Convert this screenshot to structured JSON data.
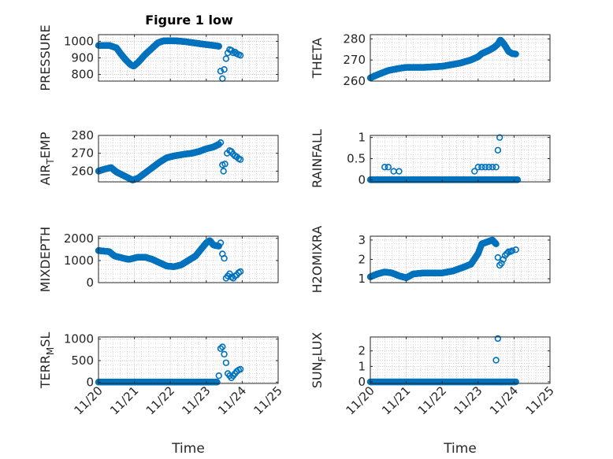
{
  "figure_title": "Figure 1 low",
  "chart_data": [
    {
      "type": "scatter",
      "ylabel": "PRESSURE",
      "xlabel": "",
      "xlim": [
        0,
        5
      ],
      "ylim": [
        760,
        1040
      ],
      "yticks": [
        800,
        900,
        1000
      ],
      "yticklabels": [
        "800",
        "900",
        "1000"
      ],
      "xticks": [
        0,
        1,
        2,
        3,
        4,
        5
      ],
      "xticklabels": [
        "11/20",
        "11/21",
        "11/22",
        "11/23",
        "11/24",
        "11/25"
      ],
      "show_xticklabels": false,
      "color": "#0072BD",
      "grid": true,
      "curve": [
        [
          0,
          975
        ],
        [
          0.3,
          975
        ],
        [
          0.5,
          960
        ],
        [
          0.6,
          930
        ],
        [
          0.75,
          890
        ],
        [
          0.9,
          858
        ],
        [
          0.98,
          850
        ],
        [
          1.1,
          872
        ],
        [
          1.3,
          920
        ],
        [
          1.5,
          960
        ],
        [
          1.65,
          990
        ],
        [
          1.8,
          1002
        ],
        [
          2.0,
          1003
        ],
        [
          2.2,
          1002
        ],
        [
          2.4,
          998
        ],
        [
          2.6,
          992
        ],
        [
          2.8,
          986
        ],
        [
          3.0,
          980
        ],
        [
          3.2,
          975
        ],
        [
          3.35,
          970
        ]
      ],
      "points": [
        [
          3.4,
          820
        ],
        [
          3.45,
          775
        ],
        [
          3.5,
          830
        ],
        [
          3.55,
          895
        ],
        [
          3.6,
          930
        ],
        [
          3.65,
          950
        ],
        [
          3.7,
          945
        ],
        [
          3.75,
          930
        ],
        [
          3.8,
          935
        ],
        [
          3.85,
          925
        ],
        [
          3.9,
          920
        ],
        [
          3.95,
          915
        ]
      ]
    },
    {
      "type": "scatter",
      "ylabel": "THETA",
      "xlabel": "",
      "xlim": [
        0,
        5
      ],
      "ylim": [
        260,
        282
      ],
      "yticks": [
        260,
        270,
        280
      ],
      "yticklabels": [
        "260",
        "270",
        "280"
      ],
      "xticks": [
        0,
        1,
        2,
        3,
        4,
        5
      ],
      "xticklabels": [
        "11/20",
        "11/21",
        "11/22",
        "11/23",
        "11/24",
        "11/25"
      ],
      "show_xticklabels": false,
      "color": "#0072BD",
      "grid": true,
      "curve": [
        [
          0,
          261.5
        ],
        [
          0.2,
          263
        ],
        [
          0.5,
          265
        ],
        [
          0.8,
          266
        ],
        [
          1.0,
          266.5
        ],
        [
          1.5,
          266.5
        ],
        [
          2.0,
          267
        ],
        [
          2.5,
          268.5
        ],
        [
          2.8,
          270
        ],
        [
          3.0,
          271.5
        ],
        [
          3.1,
          273
        ],
        [
          3.3,
          274.5
        ],
        [
          3.45,
          276
        ],
        [
          3.55,
          277.5
        ],
        [
          3.62,
          279.5
        ],
        [
          3.7,
          278
        ],
        [
          3.78,
          276
        ],
        [
          3.85,
          274
        ],
        [
          3.95,
          273
        ],
        [
          4.05,
          272.8
        ]
      ],
      "points": []
    },
    {
      "type": "scatter",
      "ylabel": "AIR_TEMP",
      "ylabel_main": "AIR",
      "ylabel_sub": "T",
      "ylabel_rest": "EMP",
      "xlabel": "",
      "xlim": [
        0,
        5
      ],
      "ylim": [
        254,
        280
      ],
      "yticks": [
        260,
        270,
        280
      ],
      "yticklabels": [
        "260",
        "270",
        "280"
      ],
      "xticks": [
        0,
        1,
        2,
        3,
        4,
        5
      ],
      "xticklabels": [
        "11/20",
        "11/21",
        "11/22",
        "11/23",
        "11/24",
        "11/25"
      ],
      "show_xticklabels": false,
      "color": "#0072BD",
      "grid": true,
      "curve": [
        [
          0,
          260
        ],
        [
          0.15,
          261
        ],
        [
          0.35,
          262
        ],
        [
          0.5,
          259.5
        ],
        [
          0.7,
          257.5
        ],
        [
          0.85,
          256
        ],
        [
          0.95,
          255
        ],
        [
          1.1,
          256
        ],
        [
          1.3,
          259
        ],
        [
          1.5,
          262
        ],
        [
          1.7,
          265
        ],
        [
          1.9,
          267.5
        ],
        [
          2.1,
          268.5
        ],
        [
          2.4,
          269.5
        ],
        [
          2.6,
          270
        ],
        [
          2.8,
          271
        ],
        [
          3.0,
          272.5
        ],
        [
          3.2,
          273.5
        ],
        [
          3.35,
          275
        ]
      ],
      "points": [
        [
          3.4,
          276
        ],
        [
          3.45,
          263.5
        ],
        [
          3.48,
          260
        ],
        [
          3.52,
          264
        ],
        [
          3.58,
          270
        ],
        [
          3.65,
          271.5
        ],
        [
          3.7,
          271
        ],
        [
          3.75,
          269.5
        ],
        [
          3.8,
          268.5
        ],
        [
          3.85,
          268
        ],
        [
          3.9,
          267
        ],
        [
          3.95,
          266.5
        ]
      ]
    },
    {
      "type": "scatter",
      "ylabel": "RAINFALL",
      "xlabel": "",
      "xlim": [
        0,
        5
      ],
      "ylim": [
        -0.05,
        1.05
      ],
      "yticks": [
        0,
        0.5,
        1
      ],
      "yticklabels": [
        "0",
        "0.5",
        "1"
      ],
      "xticks": [
        0,
        1,
        2,
        3,
        4,
        5
      ],
      "xticklabels": [
        "11/20",
        "11/21",
        "11/22",
        "11/23",
        "11/24",
        "11/25"
      ],
      "show_xticklabels": false,
      "color": "#0072BD",
      "grid": true,
      "curve": [
        [
          0,
          0
        ],
        [
          4.1,
          0
        ]
      ],
      "points": [
        [
          0.4,
          0.3
        ],
        [
          0.5,
          0.3
        ],
        [
          0.65,
          0.2
        ],
        [
          0.8,
          0.2
        ],
        [
          2.9,
          0.2
        ],
        [
          3.0,
          0.3
        ],
        [
          3.1,
          0.3
        ],
        [
          3.2,
          0.3
        ],
        [
          3.3,
          0.3
        ],
        [
          3.4,
          0.3
        ],
        [
          3.5,
          0.3
        ],
        [
          3.55,
          0.7
        ],
        [
          3.6,
          1.0
        ]
      ]
    },
    {
      "type": "scatter",
      "ylabel": "MIXDEPTH",
      "xlabel": "",
      "xlim": [
        0,
        5
      ],
      "ylim": [
        0,
        2100
      ],
      "yticks": [
        0,
        1000,
        2000
      ],
      "yticklabels": [
        "0",
        "1000",
        "2000"
      ],
      "xticks": [
        0,
        1,
        2,
        3,
        4,
        5
      ],
      "xticklabels": [
        "11/20",
        "11/21",
        "11/22",
        "11/23",
        "11/24",
        "11/25"
      ],
      "show_xticklabels": false,
      "color": "#0072BD",
      "grid": true,
      "curve": [
        [
          0,
          1450
        ],
        [
          0.3,
          1400
        ],
        [
          0.45,
          1200
        ],
        [
          0.7,
          1100
        ],
        [
          0.85,
          1050
        ],
        [
          1.1,
          1150
        ],
        [
          1.3,
          1150
        ],
        [
          1.5,
          1050
        ],
        [
          1.7,
          900
        ],
        [
          1.9,
          750
        ],
        [
          2.1,
          720
        ],
        [
          2.3,
          800
        ],
        [
          2.5,
          1000
        ],
        [
          2.7,
          1200
        ],
        [
          2.85,
          1500
        ],
        [
          3.0,
          1800
        ],
        [
          3.1,
          1900
        ],
        [
          3.2,
          1700
        ],
        [
          3.35,
          1650
        ]
      ],
      "points": [
        [
          3.4,
          1800
        ],
        [
          3.45,
          1300
        ],
        [
          3.5,
          1100
        ],
        [
          3.55,
          200
        ],
        [
          3.6,
          300
        ],
        [
          3.65,
          400
        ],
        [
          3.7,
          250
        ],
        [
          3.75,
          200
        ],
        [
          3.8,
          300
        ],
        [
          3.85,
          350
        ],
        [
          3.9,
          450
        ],
        [
          3.95,
          500
        ]
      ]
    },
    {
      "type": "scatter",
      "ylabel": "H2OMIXRA",
      "xlabel": "",
      "xlim": [
        0,
        5
      ],
      "ylim": [
        0.8,
        3.2
      ],
      "yticks": [
        1,
        2,
        3
      ],
      "yticklabels": [
        "1",
        "2",
        "3"
      ],
      "xticks": [
        0,
        1,
        2,
        3,
        4,
        5
      ],
      "xticklabels": [
        "11/20",
        "11/21",
        "11/22",
        "11/23",
        "11/24",
        "11/25"
      ],
      "show_xticklabels": false,
      "color": "#0072BD",
      "grid": true,
      "curve": [
        [
          0,
          1.1
        ],
        [
          0.2,
          1.25
        ],
        [
          0.4,
          1.35
        ],
        [
          0.6,
          1.3
        ],
        [
          0.8,
          1.15
        ],
        [
          1.0,
          1.05
        ],
        [
          1.2,
          1.25
        ],
        [
          1.5,
          1.3
        ],
        [
          2.0,
          1.3
        ],
        [
          2.3,
          1.4
        ],
        [
          2.6,
          1.6
        ],
        [
          2.8,
          1.75
        ],
        [
          3.0,
          2.3
        ],
        [
          3.1,
          2.8
        ],
        [
          3.25,
          2.9
        ],
        [
          3.4,
          3.0
        ],
        [
          3.5,
          2.8
        ]
      ],
      "points": [
        [
          3.55,
          2.1
        ],
        [
          3.6,
          1.7
        ],
        [
          3.65,
          1.8
        ],
        [
          3.7,
          2.0
        ],
        [
          3.75,
          2.2
        ],
        [
          3.8,
          2.3
        ],
        [
          3.85,
          2.4
        ],
        [
          3.9,
          2.4
        ],
        [
          3.95,
          2.45
        ],
        [
          4.05,
          2.5
        ]
      ]
    },
    {
      "type": "scatter",
      "ylabel": "TERR_MSL",
      "ylabel_main": "TERR",
      "ylabel_sub": "M",
      "ylabel_rest": "SL",
      "xlabel": "Time",
      "xlim": [
        0,
        5
      ],
      "ylim": [
        -30,
        1050
      ],
      "yticks": [
        0,
        500,
        1000
      ],
      "yticklabels": [
        "0",
        "500",
        "1000"
      ],
      "xticks": [
        0,
        1,
        2,
        3,
        4,
        5
      ],
      "xticklabels": [
        "11/20",
        "11/21",
        "11/22",
        "11/23",
        "11/24",
        "11/25"
      ],
      "show_xticklabels": true,
      "color": "#0072BD",
      "grid": true,
      "curve": [
        [
          0,
          0
        ],
        [
          3.3,
          0
        ]
      ],
      "points": [
        [
          3.35,
          150
        ],
        [
          3.4,
          780
        ],
        [
          3.45,
          820
        ],
        [
          3.5,
          650
        ],
        [
          3.55,
          450
        ],
        [
          3.6,
          200
        ],
        [
          3.65,
          150
        ],
        [
          3.7,
          100
        ],
        [
          3.75,
          150
        ],
        [
          3.8,
          200
        ],
        [
          3.85,
          250
        ],
        [
          3.9,
          280
        ],
        [
          3.95,
          300
        ]
      ]
    },
    {
      "type": "scatter",
      "ylabel": "SUN_FLUX",
      "ylabel_main": "SUN",
      "ylabel_sub": "F",
      "ylabel_rest": "LUX",
      "xlabel": "Time",
      "xlim": [
        0,
        5
      ],
      "ylim": [
        -0.1,
        2.9
      ],
      "yticks": [
        0,
        1,
        2
      ],
      "yticklabels": [
        "0",
        "1",
        "2"
      ],
      "xticks": [
        0,
        1,
        2,
        3,
        4,
        5
      ],
      "xticklabels": [
        "11/20",
        "11/21",
        "11/22",
        "11/23",
        "11/24",
        "11/25"
      ],
      "show_xticklabels": true,
      "color": "#0072BD",
      "grid": true,
      "curve": [
        [
          0,
          0
        ],
        [
          4.05,
          0
        ]
      ],
      "points": [
        [
          3.5,
          1.4
        ],
        [
          3.55,
          2.8
        ]
      ]
    }
  ]
}
